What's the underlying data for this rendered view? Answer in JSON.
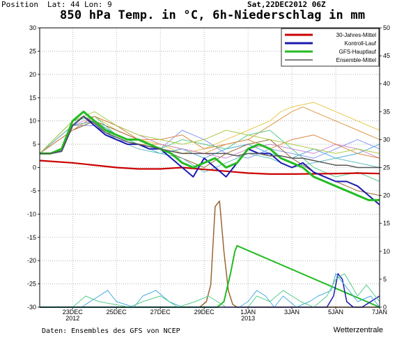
{
  "header": {
    "position_label": "Position",
    "latlon": "Lat: 44 Lon: 9",
    "date": "Sat,22DEC2012 06Z",
    "title": "850 hPa Temp. in °C, 6h-Niederschlag in mm"
  },
  "footer": {
    "source": "Daten: Ensembles des GFS von NCEP",
    "brand": "Wetterzentrale"
  },
  "chart_data": {
    "type": "line",
    "title": "850 hPa Temp. in °C, 6h-Niederschlag in mm",
    "y_left": {
      "min": -30,
      "max": 30,
      "ticks": [
        30,
        25,
        20,
        15,
        10,
        5,
        0,
        -5,
        -10,
        -15,
        -20,
        -25,
        -30
      ]
    },
    "y_right": {
      "min": 0,
      "max": 50,
      "ticks": [
        50,
        45,
        40,
        35,
        30,
        25,
        20,
        15,
        10,
        5,
        0
      ]
    },
    "x_range_days": [
      22.25,
      30.0
    ],
    "x_ticks": [
      {
        "d": 23,
        "label": "23DEC",
        "sub": "2012"
      },
      {
        "d": 24,
        "label": "25DEC",
        "sub": ""
      },
      {
        "d": 25,
        "label": "27DEC",
        "sub": ""
      },
      {
        "d": 26,
        "label": "29DEC",
        "sub": ""
      },
      {
        "d": 27,
        "label": "1JAN",
        "sub": "2013"
      },
      {
        "d": 28,
        "label": "3JAN",
        "sub": ""
      },
      {
        "d": 29,
        "label": "5JAN",
        "sub": ""
      },
      {
        "d": 30,
        "label": "7JAN",
        "sub": ""
      }
    ],
    "legend": {
      "placement": "top-right",
      "entries": [
        {
          "label": "30-Jahres-Mittel",
          "color": "#cc0000"
        },
        {
          "label": "Kontroll-Lauf",
          "color": "#1a1ab0"
        },
        {
          "label": "GFS-Hauptlauf",
          "color": "#22bb22"
        },
        {
          "label": "Ensemble-Mittel",
          "color": "#555555"
        }
      ]
    },
    "series": [
      {
        "name": "30-Jahres-Mittel",
        "color": "#cc0000",
        "width": 2.2,
        "axis": "left",
        "x": [
          22.25,
          23.0,
          24.0,
          24.5,
          25.0,
          25.5,
          26.0,
          26.5,
          27.0,
          27.5,
          28.0,
          29.0,
          29.5,
          30.0
        ],
        "y": [
          1.5,
          1.0,
          0.0,
          -0.3,
          -0.3,
          0.0,
          -0.4,
          -0.8,
          -1.2,
          -1.4,
          -1.4,
          -1.3,
          -1.2,
          -1.3
        ]
      },
      {
        "name": "Kontroll-Lauf",
        "color": "#1a1ab0",
        "width": 2,
        "axis": "left",
        "x": [
          22.25,
          22.5,
          22.75,
          23.0,
          23.25,
          23.5,
          23.75,
          24.0,
          24.25,
          24.5,
          24.75,
          25.0,
          25.25,
          25.5,
          25.75,
          26.0,
          26.25,
          26.5,
          26.75,
          27.0,
          27.25,
          27.5,
          27.75,
          28.0,
          28.25,
          28.5,
          28.75,
          29.0,
          29.25,
          29.5,
          29.75,
          30.0
        ],
        "y": [
          3,
          3,
          3.5,
          9,
          11,
          9,
          7,
          6,
          5,
          5,
          4,
          4,
          2,
          0,
          -2,
          2,
          0,
          -2,
          1,
          4,
          3,
          3,
          1,
          0,
          1,
          -1,
          -2,
          -3,
          -3,
          -4,
          -6,
          -8
        ]
      },
      {
        "name": "GFS-Hauptlauf",
        "color": "#22bb22",
        "width": 3,
        "axis": "left",
        "x": [
          22.25,
          22.5,
          22.75,
          23.0,
          23.25,
          23.5,
          23.75,
          24.0,
          24.25,
          24.5,
          24.75,
          25.0,
          25.25,
          25.5,
          25.75,
          26.0,
          26.25,
          26.5,
          26.75,
          27.0,
          27.25,
          27.5,
          27.75,
          28.0,
          28.25,
          28.5,
          28.75,
          29.0,
          29.25,
          29.5,
          29.75,
          30.0
        ],
        "y": [
          3,
          3,
          4,
          10,
          12,
          10,
          8,
          7,
          6,
          6,
          5,
          4,
          3,
          1,
          0,
          1,
          2,
          0,
          1,
          4,
          5,
          4,
          2,
          1,
          0,
          -2,
          -3,
          -4,
          -5,
          -6,
          -7,
          -7
        ]
      },
      {
        "name": "Ensemble-Mittel",
        "color": "#555555",
        "width": 1.5,
        "axis": "left",
        "x": [
          22.25,
          22.5,
          22.75,
          23.0,
          23.25,
          23.5,
          23.75,
          24.0,
          24.25,
          24.5,
          24.75,
          25.0,
          25.25,
          25.5,
          25.75,
          26.0,
          26.25,
          26.5,
          26.75,
          27.0,
          27.25,
          27.5,
          27.75,
          28.0,
          28.25,
          28.5,
          28.75,
          29.0,
          29.25,
          29.5,
          29.75,
          30.0
        ],
        "y": [
          3,
          3,
          3.5,
          9,
          11,
          9.5,
          7.5,
          6.5,
          5.5,
          5,
          4.5,
          4,
          3.5,
          3,
          3,
          3,
          3,
          3,
          2.5,
          3,
          3,
          2.5,
          2.5,
          2,
          2,
          1.5,
          1,
          0.5,
          0.5,
          0,
          0,
          0
        ]
      },
      {
        "name": "",
        "color": "#dd9944",
        "width": 1,
        "axis": "left",
        "x": [
          22.25,
          23.0,
          23.5,
          24.0,
          24.5,
          25.0,
          25.5,
          26.0,
          26.5,
          27.0,
          27.5,
          28.0,
          28.25,
          28.5,
          29.0,
          29.5,
          30.0
        ],
        "y": [
          3,
          9,
          10,
          7,
          5,
          5,
          4,
          3,
          5,
          6,
          9,
          12,
          13,
          12,
          10,
          8,
          6
        ]
      },
      {
        "name": "",
        "color": "#e6c84a",
        "width": 1,
        "axis": "left",
        "x": [
          22.25,
          23.0,
          23.5,
          24.0,
          24.5,
          25.0,
          25.5,
          26.0,
          26.5,
          27.0,
          27.5,
          27.75,
          28.0,
          28.5,
          29.0,
          29.5,
          30.0
        ],
        "y": [
          3,
          10,
          11,
          8,
          6,
          5,
          3,
          4,
          6,
          8,
          10,
          12,
          13,
          14,
          12,
          10,
          8
        ]
      },
      {
        "name": "",
        "color": "#44aadd",
        "width": 1,
        "axis": "left",
        "x": [
          22.25,
          23.0,
          23.5,
          24.0,
          24.5,
          25.0,
          25.5,
          26.0,
          26.5,
          27.0,
          27.5,
          28.0,
          28.5,
          29.0,
          29.5,
          30.0
        ],
        "y": [
          3,
          8,
          10,
          7,
          5,
          3,
          4,
          2,
          4,
          5,
          3,
          2,
          4,
          2,
          3,
          5
        ]
      },
      {
        "name": "",
        "color": "#8899ee",
        "width": 1,
        "axis": "left",
        "x": [
          22.25,
          23.0,
          23.5,
          24.0,
          24.5,
          25.0,
          25.5,
          26.0,
          26.5,
          27.0,
          27.5,
          28.0,
          28.5,
          29.0,
          29.5,
          30.0
        ],
        "y": [
          3,
          9,
          9,
          6,
          5,
          4,
          8,
          6,
          3,
          2,
          4,
          3,
          2,
          4,
          6,
          4
        ]
      },
      {
        "name": "",
        "color": "#996633",
        "width": 1,
        "axis": "left",
        "x": [
          22.25,
          23.0,
          23.5,
          24.0,
          24.5,
          25.0,
          25.5,
          26.0,
          26.5,
          27.0,
          27.5,
          28.0,
          28.5,
          29.0,
          29.5,
          30.0
        ],
        "y": [
          3,
          8,
          10,
          8,
          6,
          4,
          2,
          0,
          3,
          5,
          6,
          2,
          -1,
          -3,
          -5,
          -6
        ]
      },
      {
        "name": "",
        "color": "#55cc88",
        "width": 1,
        "axis": "left",
        "x": [
          22.25,
          23.0,
          23.5,
          24.0,
          24.5,
          25.0,
          25.5,
          26.0,
          26.5,
          27.0,
          27.5,
          28.0,
          28.5,
          29.0,
          29.5,
          30.0
        ],
        "y": [
          3,
          10,
          11,
          7,
          5,
          4,
          6,
          5,
          4,
          7,
          8,
          4,
          0,
          -2,
          -1,
          -3
        ]
      },
      {
        "name": "",
        "color": "#cc88cc",
        "width": 1,
        "axis": "left",
        "x": [
          22.25,
          23.0,
          23.5,
          24.0,
          24.5,
          25.0,
          25.5,
          26.0,
          26.5,
          27.0,
          27.5,
          28.0,
          28.5,
          29.0,
          29.5,
          30.0
        ],
        "y": [
          3,
          9,
          11,
          9,
          7,
          5,
          4,
          3,
          2,
          4,
          5,
          4,
          3,
          5,
          4,
          2
        ]
      },
      {
        "name": "",
        "color": "#dd8844",
        "width": 1,
        "axis": "left",
        "x": [
          22.25,
          23.0,
          23.5,
          24.0,
          24.5,
          25.0,
          25.5,
          26.0,
          26.5,
          27.0,
          27.5,
          28.0,
          28.5,
          29.0,
          29.5,
          30.0
        ],
        "y": [
          3,
          8,
          11,
          9,
          6,
          6,
          7,
          4,
          5,
          6,
          4,
          6,
          7,
          5,
          3,
          2
        ]
      },
      {
        "name": "",
        "color": "#66bbbb",
        "width": 1,
        "axis": "left",
        "x": [
          22.25,
          23.0,
          23.5,
          24.0,
          24.5,
          25.0,
          25.5,
          26.0,
          26.5,
          27.0,
          27.5,
          28.0,
          28.5,
          29.0,
          29.5,
          30.0
        ],
        "y": [
          3,
          9,
          10,
          6,
          4,
          3,
          2,
          -1,
          1,
          3,
          2,
          0,
          1,
          2,
          1,
          0
        ]
      },
      {
        "name": "",
        "color": "#aacc44",
        "width": 1,
        "axis": "left",
        "x": [
          22.25,
          23.0,
          23.5,
          24.0,
          24.5,
          25.0,
          25.5,
          26.0,
          26.5,
          27.0,
          27.5,
          28.0,
          28.5,
          29.0,
          29.5,
          30.0
        ],
        "y": [
          3,
          10,
          12,
          9,
          7,
          6,
          5,
          6,
          8,
          7,
          6,
          5,
          4,
          3,
          4,
          3
        ]
      },
      {
        "name": "",
        "color": "#996633",
        "width": 1.5,
        "axis": "right",
        "x": [
          22.25,
          25.9,
          26.05,
          26.15,
          26.25,
          26.35,
          26.45,
          26.55,
          26.65,
          26.75,
          30.0
        ],
        "y": [
          0,
          0,
          1,
          4,
          18,
          19,
          10,
          3,
          0.5,
          0,
          0
        ]
      },
      {
        "name": "",
        "color": "#22bb22",
        "width": 2,
        "axis": "right",
        "x": [
          22.25,
          26.3,
          26.45,
          26.6,
          26.7,
          26.75,
          30.0
        ],
        "y": [
          0,
          0,
          1,
          6,
          10,
          11,
          0
        ]
      },
      {
        "name": "",
        "color": "#1a1ab0",
        "width": 1.5,
        "axis": "right",
        "x": [
          22.25,
          28.8,
          28.95,
          29.05,
          29.15,
          29.25,
          29.4,
          29.6,
          29.8,
          30.0
        ],
        "y": [
          0,
          0,
          2,
          6,
          5,
          1,
          0,
          0,
          1,
          2
        ]
      },
      {
        "name": "",
        "color": "#44aadd",
        "width": 1,
        "axis": "right",
        "x": [
          22.25,
          23.2,
          23.5,
          23.8,
          24.0,
          24.4,
          24.6,
          24.9,
          25.2,
          25.5,
          26.8,
          27.0,
          27.2,
          27.4,
          27.6,
          27.8,
          28.1,
          28.4,
          28.6,
          28.9,
          29.0,
          29.3,
          29.5,
          29.8,
          30.0
        ],
        "y": [
          0,
          0,
          1.5,
          3,
          1,
          0,
          2,
          3,
          1,
          0,
          0,
          1,
          3,
          2,
          0,
          2,
          0,
          1,
          2,
          3,
          6,
          3,
          1,
          2,
          0
        ]
      },
      {
        "name": "",
        "color": "#55cc88",
        "width": 1,
        "axis": "right",
        "x": [
          22.25,
          23.0,
          23.3,
          23.6,
          24.3,
          24.6,
          25.0,
          25.4,
          25.8,
          26.1,
          26.5,
          27.0,
          27.2,
          27.5,
          27.8,
          28.2,
          28.5,
          28.8,
          29.0,
          29.2,
          29.5,
          29.7,
          30.0
        ],
        "y": [
          0,
          0,
          2,
          1,
          0,
          1,
          2,
          0,
          1,
          2,
          0,
          0,
          2,
          1,
          3,
          1,
          0,
          2,
          5,
          6,
          2,
          4,
          1
        ]
      }
    ]
  }
}
